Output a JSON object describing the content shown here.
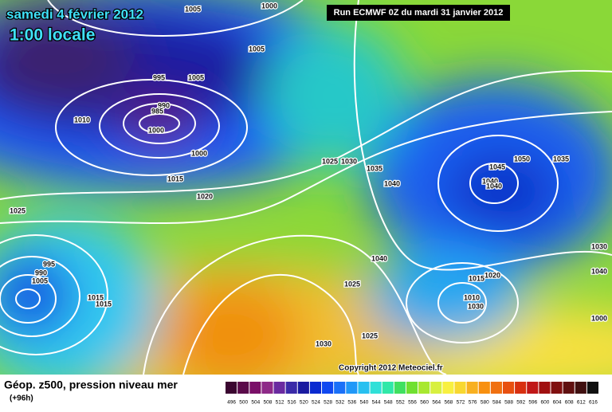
{
  "header": {
    "date": "samedi 4 février 2012",
    "time": "1:00 locale",
    "run": "Run ECMWF 0Z du mardi 31 janvier 2012"
  },
  "map": {
    "isobar_labels": [
      1005,
      1000,
      1005,
      1005,
      995,
      990,
      985,
      1000,
      1000,
      1010,
      1015,
      1020,
      1025,
      1025,
      1030,
      1035,
      1040,
      1045,
      1050,
      1035,
      1040,
      1040,
      1040,
      1025,
      1020,
      1015,
      1010,
      1030,
      1025,
      1030,
      1040,
      1030,
      1000,
      995,
      990,
      1005,
      1015,
      1015
    ],
    "copyright": "Copyright 2012 Meteociel.fr"
  },
  "footer": {
    "title": "Géop. z500, pression niveau mer",
    "lead": "(+96h)",
    "scale": {
      "labels": [
        496,
        500,
        504,
        508,
        512,
        516,
        520,
        524,
        528,
        532,
        536,
        540,
        544,
        548,
        552,
        556,
        560,
        564,
        568,
        572,
        576,
        580,
        584,
        588,
        592,
        596,
        600,
        604,
        608,
        612,
        616
      ],
      "colors": [
        "#3a0630",
        "#5a0a4a",
        "#7a1068",
        "#8e2a88",
        "#6a2aa0",
        "#3a2aa8",
        "#1a1aa0",
        "#0a2ad0",
        "#1048f0",
        "#1a70f8",
        "#2098f8",
        "#28c0f0",
        "#30e0d8",
        "#30e8a8",
        "#40e060",
        "#70e030",
        "#a8e830",
        "#d8f040",
        "#f8f040",
        "#f8d830",
        "#f8b020",
        "#f89010",
        "#f07010",
        "#e85010",
        "#d83010",
        "#c01818",
        "#a01010",
        "#801010",
        "#601010",
        "#401010",
        "#101010"
      ]
    }
  }
}
